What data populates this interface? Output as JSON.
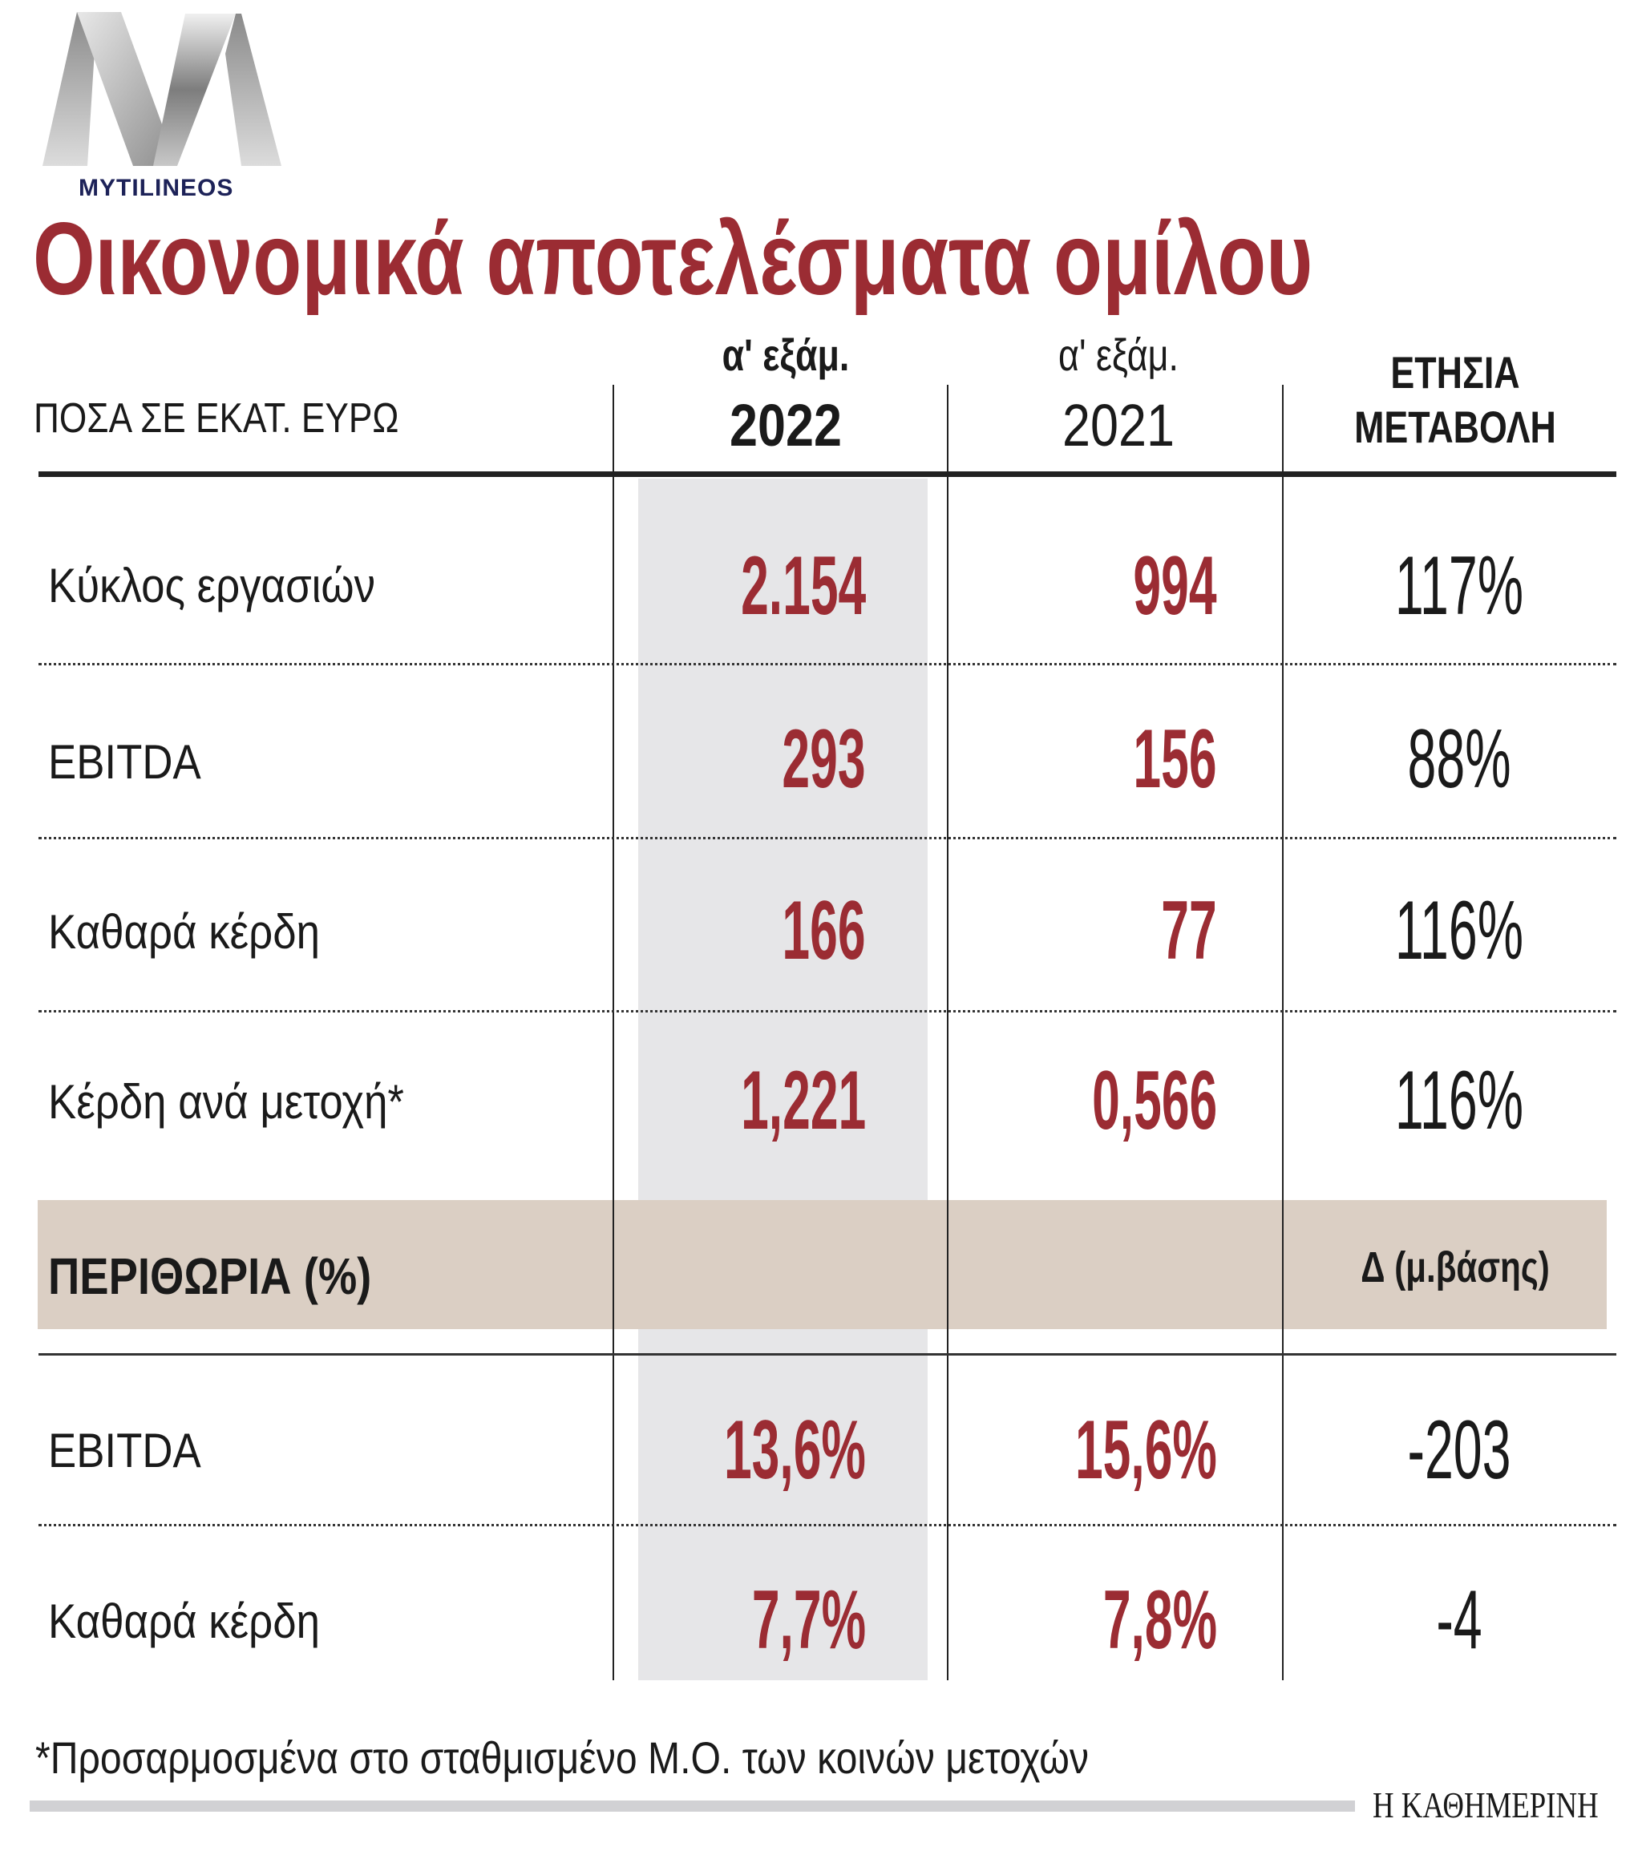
{
  "logo": {
    "brand": "MYTILINEOS",
    "icon": "mytilineos-m-logo"
  },
  "title": "Οικονομικά αποτελέσματα ομίλου",
  "header": {
    "units": "ΠΟΣΑ ΣΕ ΕΚΑΤ. ΕΥΡΩ",
    "col1_period": "α' εξάμ.",
    "col1_year": "2022",
    "col2_period": "α' εξάμ.",
    "col2_year": "2021",
    "col3_line1": "ΕΤΗΣΙΑ",
    "col3_line2": "ΜΕΤΑΒΟΛΗ"
  },
  "rows": [
    {
      "label": "Κύκλος εργασιών",
      "v2022": "2.154",
      "v2021": "994",
      "change": "117%"
    },
    {
      "label": "EBITDA",
      "v2022": "293",
      "v2021": "156",
      "change": "88%"
    },
    {
      "label": "Καθαρά κέρδη",
      "v2022": "166",
      "v2021": "77",
      "change": "116%"
    },
    {
      "label": "Κέρδη ανά μετοχή*",
      "v2022": "1,221",
      "v2021": "0,566",
      "change": "116%"
    }
  ],
  "margins_section": {
    "title": "ΠΕΡΙΘΩΡΙΑ (%)",
    "change_header": "Δ (μ.βάσης)"
  },
  "margin_rows": [
    {
      "label": "EBITDA",
      "v2022": "13,6%",
      "v2021": "15,6%",
      "change": "-203"
    },
    {
      "label": "Καθαρά κέρδη",
      "v2022": "7,7%",
      "v2021": "7,8%",
      "change": "-4"
    }
  ],
  "footnote": "*Προσαρμοσμένα στο σταθμισμένο Μ.Ο. των κοινών μετοχών",
  "source": "Η ΚΑΘΗΜΕΡΙΝΗ",
  "colors": {
    "accent": "#9b2c33",
    "highlight_column": "#e6e6e8",
    "section_band": "#dbcfc4"
  }
}
